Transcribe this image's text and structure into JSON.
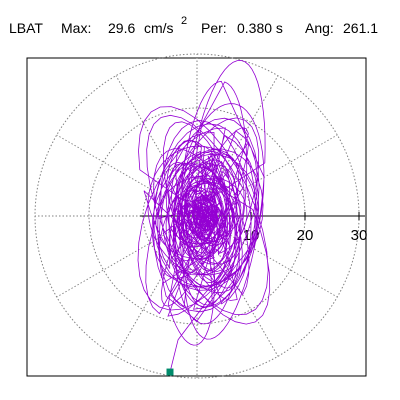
{
  "header": {
    "station": "LBAT",
    "max_label": "Max:",
    "max_value": "29.6",
    "max_unit": "cm/s",
    "max_unit_exp": "2",
    "per_label": "Per:",
    "per_value": "0.380 s",
    "ang_label": "Ang:",
    "ang_value": "261.1"
  },
  "colors": {
    "trace": "#9400d3",
    "marker": "#008b6b",
    "grid": "#808080",
    "axis": "#000000",
    "frame": "#000000"
  },
  "chart_data": {
    "type": "scatter",
    "title": "",
    "xlabel": "",
    "ylabel": "",
    "coordinate_system": "polar",
    "radius_range": [
      0,
      30
    ],
    "grid_rings": [
      10,
      20,
      30
    ],
    "grid_spokes_deg": [
      0,
      30,
      60,
      90,
      120,
      150,
      180,
      210,
      240,
      270,
      300,
      330
    ],
    "tick_labels": [
      "10",
      "20",
      "30"
    ],
    "grid": true,
    "series": [
      {
        "marker_point": {
          "x": -5,
          "y": -28.9
        }
      }
    ]
  }
}
